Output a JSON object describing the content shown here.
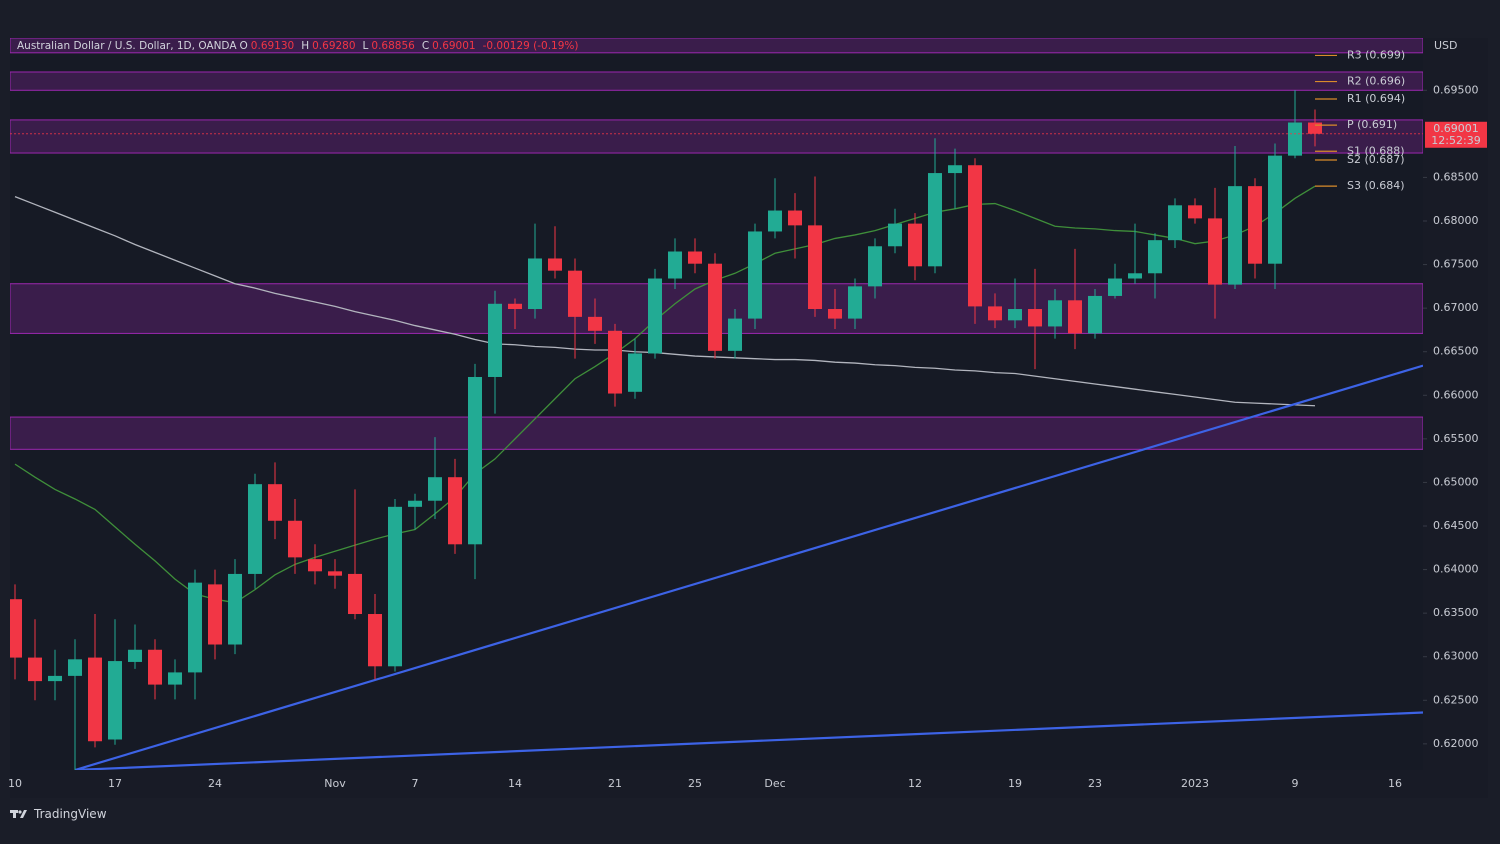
{
  "chart_data": {
    "type": "candlestick",
    "legend_title": "Australian Dollar / U.S. Dollar, 1D, OANDA",
    "legend_fields": [
      {
        "key": "O",
        "value": "0.69130"
      },
      {
        "key": "H",
        "value": "0.69280"
      },
      {
        "key": "L",
        "value": "0.68856"
      },
      {
        "key": "C",
        "value": "0.69001"
      }
    ],
    "legend_change": "-0.00129 (-0.19%)",
    "currency": "USD",
    "brand": "TradingView",
    "categories": [
      "10",
      null,
      null,
      null,
      null,
      "17",
      null,
      null,
      null,
      null,
      "24",
      null,
      null,
      null,
      null,
      null,
      "Nov",
      null,
      null,
      null,
      "7",
      null,
      null,
      null,
      null,
      "14",
      null,
      null,
      null,
      null,
      "21",
      null,
      null,
      null,
      "25",
      null,
      null,
      null,
      "Dec",
      null,
      null,
      null,
      null,
      null,
      null,
      "12",
      null,
      null,
      null,
      null,
      "19",
      null,
      null,
      null,
      "23",
      null,
      null,
      null,
      null,
      "2023",
      null,
      null,
      null,
      null,
      "9",
      null,
      null,
      null,
      null,
      "16"
    ],
    "open": [
      0.6366,
      0.6299,
      0.6272,
      0.6278,
      0.6299,
      0.6205,
      0.6294,
      0.6308,
      0.6268,
      0.6282,
      0.6383,
      0.6314,
      0.6395,
      0.6498,
      0.6456,
      0.6412,
      0.6398,
      0.6395,
      0.6349,
      0.6289,
      0.6472,
      0.6479,
      0.6506,
      0.6429,
      0.6621,
      0.6705,
      0.6699,
      0.6757,
      0.6743,
      0.669,
      0.6674,
      0.6604,
      0.6648,
      0.6734,
      0.6765,
      0.6751,
      0.6651,
      0.6688,
      0.6788,
      0.6812,
      0.6795,
      0.6699,
      0.6688,
      0.6725,
      0.6771,
      0.6797,
      0.6748,
      0.6855,
      0.6864,
      0.6702,
      0.6686,
      0.6699,
      0.6679,
      0.6709,
      0.6671,
      0.6714,
      0.6734,
      0.674,
      0.6778,
      0.6818,
      0.6803,
      0.6727,
      0.684,
      0.6751,
      0.6875,
      0.6913,
      null,
      null,
      null,
      null
    ],
    "high": [
      0.6383,
      0.6343,
      0.6308,
      0.632,
      0.6349,
      0.6343,
      0.6337,
      0.632,
      0.6297,
      0.64,
      0.64,
      0.6412,
      0.651,
      0.6523,
      0.6481,
      0.6429,
      0.6412,
      0.6492,
      0.6372,
      0.6481,
      0.6487,
      0.6552,
      0.6527,
      0.6636,
      0.672,
      0.6711,
      0.6797,
      0.6794,
      0.6757,
      0.6711,
      0.6682,
      0.6665,
      0.6745,
      0.678,
      0.678,
      0.6763,
      0.6699,
      0.6797,
      0.6849,
      0.6832,
      0.6851,
      0.6722,
      0.6734,
      0.678,
      0.6814,
      0.6809,
      0.6895,
      0.6883,
      0.6872,
      0.6717,
      0.6734,
      0.6745,
      0.6722,
      0.6768,
      0.6722,
      0.6751,
      0.6797,
      0.6786,
      0.6826,
      0.6826,
      0.6838,
      0.6886,
      0.6849,
      0.6889,
      0.695,
      0.6928,
      null,
      null,
      null,
      null
    ],
    "low": [
      0.6274,
      0.625,
      0.625,
      0.617,
      0.6196,
      0.6199,
      0.6286,
      0.6251,
      0.6251,
      0.6251,
      0.6297,
      0.6303,
      0.6378,
      0.6435,
      0.6395,
      0.6383,
      0.6378,
      0.6343,
      0.6274,
      0.6283,
      0.6446,
      0.6458,
      0.6418,
      0.6389,
      0.6579,
      0.6676,
      0.6688,
      0.6734,
      0.6642,
      0.6659,
      0.6587,
      0.6596,
      0.6642,
      0.6722,
      0.674,
      0.6642,
      0.6642,
      0.6676,
      0.678,
      0.6757,
      0.669,
      0.6676,
      0.6676,
      0.6711,
      0.6763,
      0.6732,
      0.674,
      0.6814,
      0.6682,
      0.6677,
      0.6677,
      0.663,
      0.6665,
      0.6653,
      0.6665,
      0.6711,
      0.6728,
      0.6711,
      0.6769,
      0.6797,
      0.6688,
      0.6722,
      0.6734,
      0.6722,
      0.6872,
      0.68856,
      null,
      null,
      null,
      null
    ],
    "close": [
      0.6299,
      0.6272,
      0.6278,
      0.6297,
      0.6203,
      0.6295,
      0.6308,
      0.6268,
      0.6282,
      0.6385,
      0.6314,
      0.6395,
      0.6498,
      0.6456,
      0.6414,
      0.6398,
      0.6393,
      0.6349,
      0.6289,
      0.6472,
      0.6479,
      0.6506,
      0.6429,
      0.6621,
      0.6705,
      0.6699,
      0.6757,
      0.6743,
      0.669,
      0.6674,
      0.6602,
      0.6648,
      0.6734,
      0.6765,
      0.6751,
      0.6651,
      0.6688,
      0.6788,
      0.6812,
      0.6795,
      0.6699,
      0.6688,
      0.6725,
      0.6771,
      0.6797,
      0.6748,
      0.6855,
      0.6864,
      0.6702,
      0.6686,
      0.6699,
      0.6679,
      0.6709,
      0.6671,
      0.6714,
      0.6734,
      0.674,
      0.6778,
      0.6818,
      0.6803,
      0.6727,
      0.684,
      0.6751,
      0.6875,
      0.6913,
      0.69001,
      null,
      null,
      null,
      null
    ],
    "up_color": "#22ab94",
    "down_color": "#f23645",
    "moving_averages": [
      {
        "color": "#3f8f3a",
        "values": [
          0.6521,
          0.6506,
          0.6492,
          0.6481,
          0.6469,
          0.6449,
          0.6429,
          0.641,
          0.6389,
          0.6372,
          0.6366,
          0.6362,
          0.6377,
          0.6394,
          0.6406,
          0.6414,
          0.6421,
          0.6428,
          0.6435,
          0.6441,
          0.6446,
          0.6464,
          0.6483,
          0.651,
          0.6527,
          0.655,
          0.6573,
          0.6596,
          0.6619,
          0.6633,
          0.6648,
          0.6665,
          0.6686,
          0.6705,
          0.6722,
          0.6732,
          0.674,
          0.6751,
          0.6763,
          0.6768,
          0.6773,
          0.678,
          0.6784,
          0.6789,
          0.6796,
          0.6803,
          0.681,
          0.6814,
          0.6819,
          0.682,
          0.6812,
          0.6803,
          0.6794,
          0.6792,
          0.6791,
          0.6789,
          0.6788,
          0.6784,
          0.678,
          0.6774,
          0.6777,
          0.6784,
          0.6794,
          0.6809,
          0.6826,
          0.684,
          null,
          null,
          null,
          null
        ]
      },
      {
        "color": "#b2b5be",
        "values": [
          0.6828,
          0.6819,
          0.681,
          0.6801,
          0.6792,
          0.6783,
          0.6773,
          0.6764,
          0.6755,
          0.6746,
          0.6737,
          0.6728,
          0.6723,
          0.6717,
          0.6712,
          0.6707,
          0.6702,
          0.6696,
          0.6691,
          0.6686,
          0.668,
          0.6675,
          0.667,
          0.6664,
          0.6659,
          0.6658,
          0.6656,
          0.6655,
          0.6653,
          0.6652,
          0.6652,
          0.665,
          0.6649,
          0.6647,
          0.6645,
          0.6644,
          0.6643,
          0.6642,
          0.6641,
          0.6641,
          0.664,
          0.6638,
          0.6637,
          0.6635,
          0.6634,
          0.6632,
          0.6631,
          0.6629,
          0.6628,
          0.6626,
          0.6625,
          0.6622,
          0.6619,
          0.6616,
          0.6613,
          0.661,
          0.6607,
          0.6604,
          0.6601,
          0.6598,
          0.6595,
          0.6592,
          0.6591,
          0.659,
          0.6589,
          0.6588,
          null,
          null,
          null,
          null
        ]
      }
    ],
    "trendlines": [
      {
        "color": "#3d63e6",
        "x": [
          3,
          70.4
        ],
        "y": [
          0.617,
          0.6634
        ]
      },
      {
        "color": "#3d63e6",
        "x": [
          3,
          70.4
        ],
        "y": [
          0.617,
          0.6236
        ]
      }
    ],
    "zones": [
      [
        0.6993,
        0.701
      ],
      [
        0.695,
        0.6971
      ],
      [
        0.6878,
        0.6916
      ],
      [
        0.6671,
        0.6728
      ],
      [
        0.6538,
        0.6575
      ]
    ],
    "zone_color": "#9c27b0",
    "pivots": [
      {
        "label": "R3 (0.699)",
        "value": 0.699
      },
      {
        "label": "R2 (0.696)",
        "value": 0.696
      },
      {
        "label": "R1 (0.694)",
        "value": 0.694
      },
      {
        "label": "P (0.691)",
        "value": 0.691
      },
      {
        "label": "S1 (0.688)",
        "value": 0.688
      },
      {
        "label": "S2 (0.687)",
        "value": 0.687
      },
      {
        "label": "S3 (0.684)",
        "value": 0.684
      }
    ],
    "pivot_color": "#d98c2b",
    "price_tag": {
      "value": 0.69001,
      "label": "0.69001",
      "countdown": "12:52:39"
    },
    "ylim": [
      0.617,
      0.701
    ],
    "yticks": [
      {
        "value": 0.62,
        "label": "0.62000"
      },
      {
        "value": 0.625,
        "label": "0.62500"
      },
      {
        "value": 0.63,
        "label": "0.63000"
      },
      {
        "value": 0.635,
        "label": "0.63500"
      },
      {
        "value": 0.64,
        "label": "0.64000"
      },
      {
        "value": 0.645,
        "label": "0.64500"
      },
      {
        "value": 0.65,
        "label": "0.65000"
      },
      {
        "value": 0.655,
        "label": "0.65500"
      },
      {
        "value": 0.66,
        "label": "0.66000"
      },
      {
        "value": 0.665,
        "label": "0.66500"
      },
      {
        "value": 0.67,
        "label": "0.67000"
      },
      {
        "value": 0.675,
        "label": "0.67500"
      },
      {
        "value": 0.68,
        "label": "0.68000"
      },
      {
        "value": 0.685,
        "label": "0.68500"
      },
      {
        "value": 0.695,
        "label": "0.69500"
      }
    ],
    "grid": false
  }
}
